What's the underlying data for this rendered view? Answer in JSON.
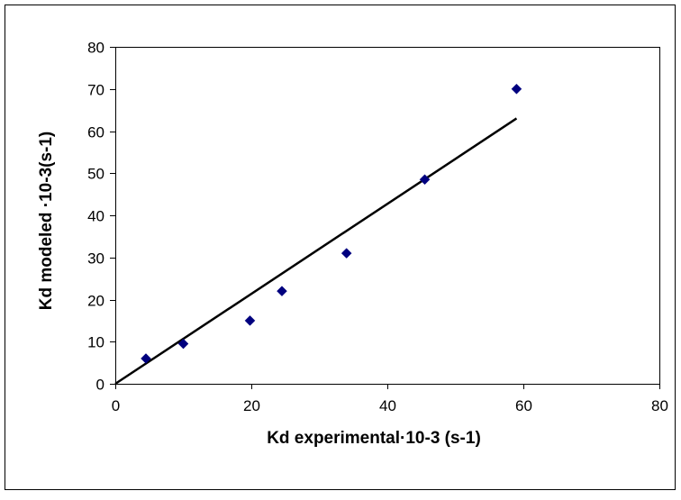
{
  "chart_data": {
    "type": "scatter",
    "title": "",
    "xlabel": "Kd experimental·10-3 (s-1)",
    "ylabel": "Kd modeled ·10-3(s-1)",
    "xlim": [
      0,
      80
    ],
    "ylim": [
      0,
      80
    ],
    "xticks": [
      0,
      20,
      40,
      60,
      80
    ],
    "yticks": [
      0,
      10,
      20,
      30,
      40,
      50,
      60,
      70,
      80
    ],
    "grid": false,
    "legend": "none",
    "series": [
      {
        "kind": "markers",
        "marker": "diamond",
        "color": "#00007f",
        "x": [
          4.5,
          10,
          19.8,
          24.5,
          34,
          45.5,
          59
        ],
        "y": [
          6,
          9.5,
          15,
          22,
          31,
          48.5,
          70
        ]
      },
      {
        "kind": "fit-line",
        "color": "#000000",
        "x": [
          0,
          59
        ],
        "y": [
          0,
          63
        ]
      }
    ]
  }
}
